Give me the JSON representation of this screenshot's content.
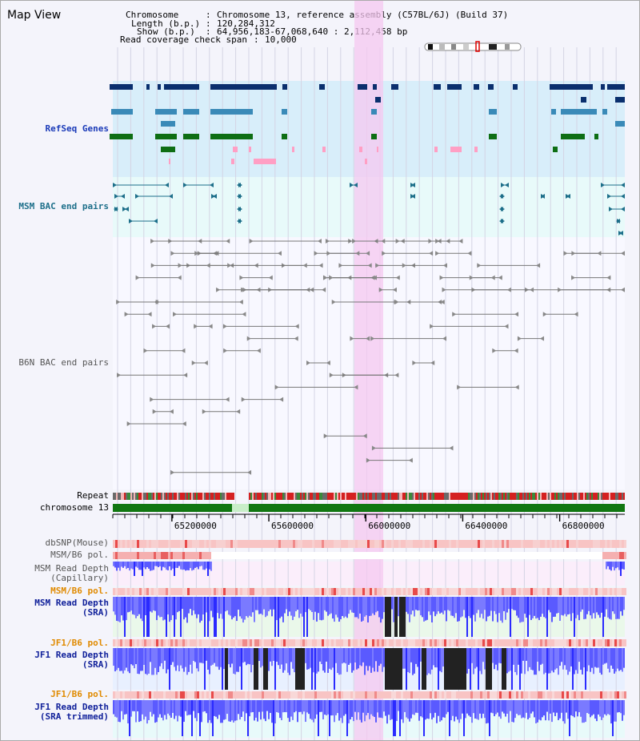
{
  "view_title": "Map View",
  "header": {
    "chromosome_label": "Chromosome",
    "chromosome_value": "Chromosome 13, reference assembly (C57BL/6J) (Build 37)",
    "length_label": "Length (b.p.)",
    "length_value": "120,284,312",
    "show_label": "Show (b.p.)",
    "show_value": "64,956,183-67,068,640 : 2,112,458 bp",
    "span_label": "Read coverage check span",
    "span_value": "10,000"
  },
  "tracks": {
    "refseq": "RefSeq Genes",
    "msm_bac": "MSM BAC end pairs",
    "b6n_bac": "B6N BAC end pairs",
    "repeat": "Repeat",
    "chromosome": "chromosome 13",
    "dbsnp": "dbSNP(Mouse)",
    "msm_pol": "MSM/B6 pol.",
    "msm_depth_cap": "MSM Read Depth\n(Capillary)",
    "msm_pol2": "MSM/B6 pol.",
    "msm_depth_sra": "MSM Read Depth\n(SRA)",
    "jf1_pol": "JF1/B6 pol.",
    "jf1_depth_sra": "JF1 Read Depth\n(SRA)",
    "jf1_pol2": "JF1/B6 pol.",
    "jf1_depth_trim": "JF1 Read Depth\n(SRA trimmed)"
  },
  "axis": {
    "start": 64956183,
    "end": 67068640,
    "ticks": [
      "65200000",
      "65600000",
      "66000000",
      "66400000",
      "66800000"
    ]
  },
  "colors": {
    "refseq_dark": "#0a2f6e",
    "refseq_mid": "#3a8ab8",
    "refseq_green": "#0e6e14",
    "refseq_pink": "#ff9fc4",
    "highlight": "#f6c8f0",
    "depth_blue": "#2a2aff",
    "chrom_green": "#117711"
  }
}
